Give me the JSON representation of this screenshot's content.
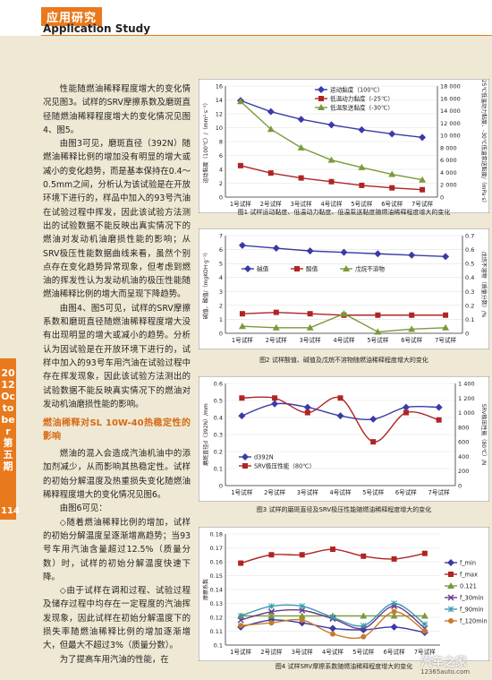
{
  "header": {
    "section_cn": "应用研究",
    "section_en": "Application Study"
  },
  "side": {
    "issue": "2012 October 第五期",
    "page": "114"
  },
  "body": {
    "paragraphs": [
      "性能随燃油稀释程度增大的变化情况见图3。试样的SRV摩擦系数及磨斑直径随燃油稀释程度增大的变化情况见图4、图5。",
      "由图3可见，磨斑直径（392N）随燃油稀释比例的增加没有明显的增大或减小的变化趋势，而是基本保持在0.4～0.5mm之间，分析认为该试验是在开放环境下进行的，样品中加入的93号汽油在试验过程中挥发，因此该试验方法测出的试验数据不能反映出真实情况下的燃油对发动机油磨损性能的影响；从SRV极压性能数据曲线来看，虽然个别点存在变化趋势异常现象，但考虑到燃油的挥发性认为发动机油的极压性能随燃油稀释比例的增大而呈现下降趋势。",
      "由图4、图5可见，试样的SRV摩擦系数和磨斑直径随燃油稀释程度增大没有出现明显的增大或减小的趋势。分析认为因试验是在开放环境下进行的，试样中加入的93号车用汽油在试验过程中存在挥发现象，因此该试验方法测出的试验数据不能反映真实情况下的燃油对发动机油磨损性能的影响。"
    ],
    "heading": "燃油稀释对SL 10W-40热稳定性的影响",
    "paragraphs2": [
      "燃油的混入会造成汽油机油中的添加剂减少，从而影响其热稳定性。试样的初始分解温度及热重损失变化随燃油稀释程度增大的变化情况见图6。",
      "由图6可见：",
      "◇随着燃油稀释比例的增加，试样的初始分解温度呈逐渐增高趋势；当93号车用汽油含量超过12.5%（质量分数）时，试样的初始分解温度快速下降。",
      "◇由于试样在调和过程、试验过程及储存过程中均存在一定程度的汽油挥发现象，因此试样在初始分解温度下的损失率随燃油稀释比例的增加逐渐增大，但最大不超过3%（质量分数）。",
      "为了提高车用汽油的性能，在"
    ]
  },
  "fig1": {
    "caption": "图1 试样运动黏度、低温动力黏度、低温泵送黏度随燃油稀释程度增大的变化",
    "chart_data": {
      "type": "line",
      "categories": [
        "1号试样",
        "2号试样",
        "3号试样",
        "4号试样",
        "5号试样",
        "6号试样",
        "7号试样"
      ],
      "ylabel": "运动黏度（100℃）/（mm²·s⁻¹）",
      "y2label": "-25℃低温动力黏度、-30℃低温泵送黏度/（mPa·s）",
      "ylim": [
        0,
        16
      ],
      "y2lim": [
        0,
        18000
      ],
      "yticks": [
        "0",
        "2",
        "4",
        "6",
        "8",
        "10",
        "12",
        "14",
        "16"
      ],
      "y2ticks": [
        "0",
        "2 000",
        "4 000",
        "6 000",
        "8 000",
        "10 000",
        "12 000",
        "14 000",
        "16 000",
        "18 000"
      ],
      "series": [
        {
          "name": "运动黏度（100℃）",
          "axis": "left",
          "color": "#3a3aa8",
          "marker": "diamond",
          "values": [
            13.9,
            12.3,
            11.2,
            10.4,
            9.7,
            9.1,
            8.6
          ]
        },
        {
          "name": "低温动力黏度（-25℃）",
          "axis": "right",
          "color": "#b02424",
          "marker": "square",
          "values": [
            5100,
            3900,
            3100,
            2500,
            1900,
            1500,
            1200
          ]
        },
        {
          "name": "低温泵送黏度（-30℃）",
          "axis": "right",
          "color": "#7a9a3a",
          "marker": "triangle",
          "values": [
            15500,
            11000,
            8000,
            6000,
            4800,
            3700,
            2800
          ]
        }
      ]
    }
  },
  "fig2": {
    "caption": "图2 试样酸值、碱值及戊烷不溶物随燃油稀释程度增大的变化",
    "chart_data": {
      "type": "line",
      "categories": [
        "1号试样",
        "2号试样",
        "3号试样",
        "4号试样",
        "5号试样",
        "6号试样",
        "7号试样"
      ],
      "ylabel": "碱值、酸值/（mgKOH·g⁻¹）",
      "y2label": "戊烷不溶物（质量分数）/%",
      "ylim": [
        0,
        7
      ],
      "y2lim": [
        0,
        0.7
      ],
      "yticks": [
        "0",
        "1",
        "2",
        "3",
        "4",
        "5",
        "6",
        "7"
      ],
      "y2ticks": [
        "0",
        "0.1",
        "0.2",
        "0.3",
        "0.4",
        "0.5",
        "0.6",
        "0.7"
      ],
      "series": [
        {
          "name": "碱值",
          "axis": "left",
          "color": "#3a3aa8",
          "marker": "diamond",
          "values": [
            6.3,
            6.1,
            5.9,
            5.8,
            5.7,
            5.6,
            5.5
          ]
        },
        {
          "name": "酸值",
          "axis": "left",
          "color": "#b02424",
          "marker": "square",
          "values": [
            1.4,
            1.5,
            1.4,
            1.3,
            1.3,
            1.3,
            1.3
          ]
        },
        {
          "name": "戊烷不溶物",
          "axis": "right",
          "color": "#7a9a3a",
          "marker": "triangle",
          "values": [
            0.05,
            0.04,
            0.04,
            0.14,
            0.01,
            0.03,
            0.04
          ]
        }
      ]
    }
  },
  "fig3": {
    "caption": "图3 试样的磨斑直径及SRV极压性能随燃油稀释程度增大的变化",
    "chart_data": {
      "type": "line",
      "categories": [
        "1号试样",
        "2号试样",
        "3号试样",
        "4号试样",
        "5号试样",
        "6号试样",
        "7号试样"
      ],
      "ylabel": "磨斑直径d（392N）/mm",
      "y2label": "SRV极压性能（80℃）/N",
      "ylim": [
        0,
        0.6
      ],
      "y2lim": [
        0,
        1400
      ],
      "yticks": [
        "0",
        "0.1",
        "0.2",
        "0.3",
        "0.4",
        "0.5",
        "0.6"
      ],
      "y2ticks": [
        "0",
        "200",
        "400",
        "600",
        "800",
        "1 000",
        "1 200",
        "1 400"
      ],
      "series": [
        {
          "name": "d392N",
          "axis": "left",
          "color": "#3a3aa8",
          "marker": "diamond",
          "values": [
            0.41,
            0.48,
            0.46,
            0.41,
            0.39,
            0.46,
            0.46
          ]
        },
        {
          "name": "SRV极压性能（80℃）",
          "axis": "right",
          "color": "#b02424",
          "marker": "square",
          "values": [
            1200,
            1200,
            1000,
            1200,
            600,
            1000,
            900
          ]
        }
      ]
    }
  },
  "fig4": {
    "caption": "图4 试样SRV摩擦系数随燃油稀释程度增大的变化",
    "chart_data": {
      "type": "line",
      "categories": [
        "1号试样",
        "2号试样",
        "3号试样",
        "4号试样",
        "5号试样",
        "6号试样",
        "7号试样"
      ],
      "ylabel": "摩擦系数",
      "ylim": [
        0.1,
        0.18
      ],
      "yticks": [
        "0.1",
        "0.11",
        "0.12",
        "0.13",
        "0.14",
        "0.15",
        "0.16",
        "0.17",
        "0.18"
      ],
      "series": [
        {
          "name": "f_min",
          "color": "#3a3aa8",
          "marker": "diamond",
          "values": [
            0.113,
            0.118,
            0.116,
            0.112,
            0.111,
            0.113,
            0.109
          ]
        },
        {
          "name": "f_max",
          "color": "#b02424",
          "marker": "square",
          "values": [
            0.159,
            0.165,
            0.165,
            0.169,
            0.164,
            0.162,
            0.166
          ]
        },
        {
          "name": "0.121",
          "color": "#7a9a3a",
          "marker": "triangle",
          "values": [
            0.121,
            0.121,
            0.121,
            0.121,
            0.121,
            0.121,
            0.121
          ]
        },
        {
          "name": "f_30min",
          "color": "#6a3a8a",
          "marker": "x",
          "values": [
            0.118,
            0.124,
            0.125,
            0.119,
            0.112,
            0.128,
            0.112
          ]
        },
        {
          "name": "f_90min",
          "color": "#3a9ab0",
          "marker": "star",
          "values": [
            0.121,
            0.128,
            0.128,
            0.12,
            0.114,
            0.13,
            0.115
          ]
        },
        {
          "name": "f_120min",
          "color": "#c87a2a",
          "marker": "circle",
          "values": [
            0.114,
            0.116,
            0.118,
            0.108,
            0.106,
            0.124,
            0.11
          ]
        }
      ]
    }
  },
  "watermark": {
    "text": "汽车之家",
    "url": "12365auto.com"
  }
}
